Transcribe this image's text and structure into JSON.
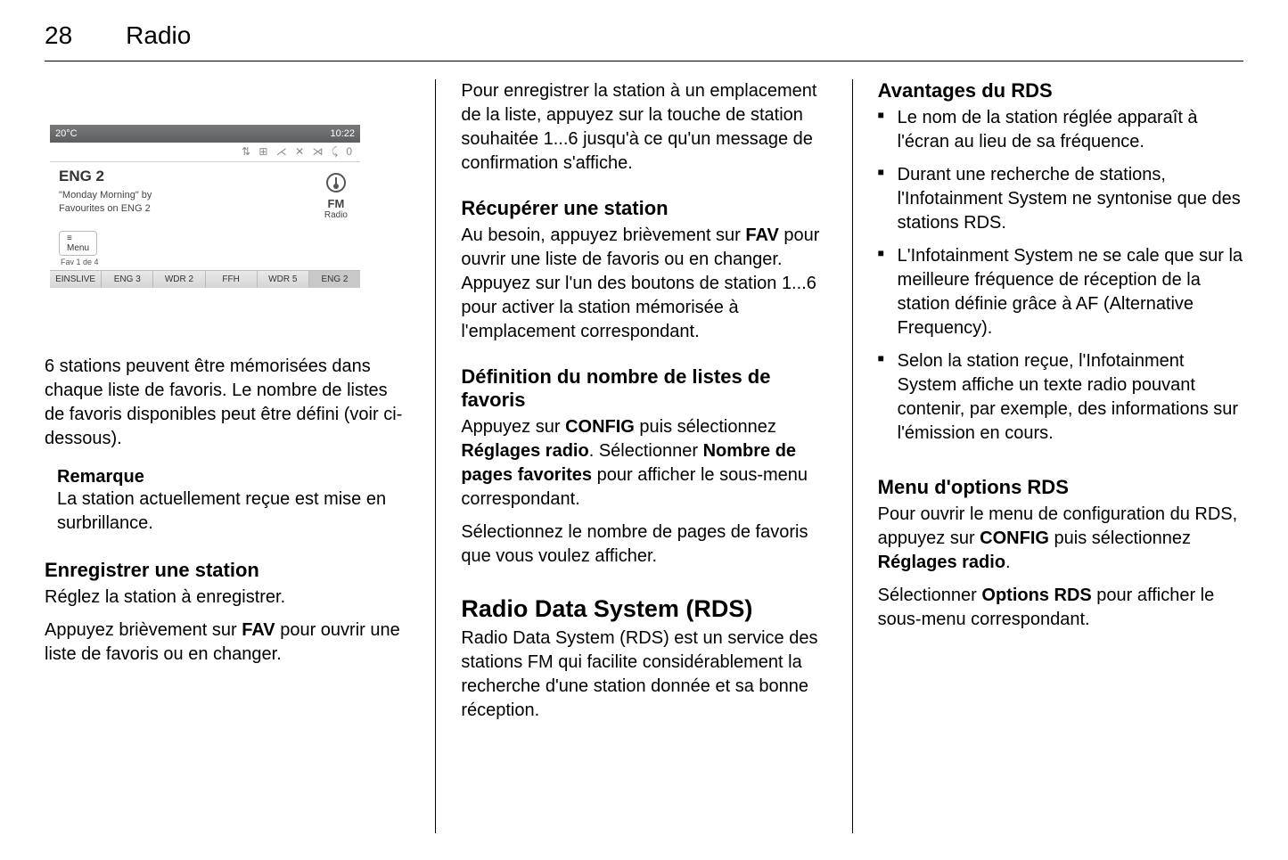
{
  "header": {
    "page_number": "28",
    "chapter": "Radio"
  },
  "screenshot": {
    "temp": "20°C",
    "time": "10:22",
    "status_icons": "⇅ ⊞ ⋌ ✕ ⋊ ⤹ 0",
    "current_station": "ENG 2",
    "now_playing_line1": "\"Monday Morning\" by",
    "now_playing_line2": "Favourites on ENG 2",
    "band_label_big": "FM",
    "band_label_small": "Radio",
    "menu_icon": "≡",
    "menu_label": "Menu",
    "fav_page_label": "Fav 1 de 4",
    "presets": [
      "EINSLIVE",
      "ENG 3",
      "WDR 2",
      "FFH",
      "WDR 5",
      "ENG 2"
    ]
  },
  "col1": {
    "p1": "6 stations peuvent être mémorisées dans chaque liste de favoris. Le nombre de listes de favoris disponibles peut être défini (voir ci-dessous).",
    "remark_title": "Remarque",
    "remark_body": "La station actuellement reçue est mise en surbrillance.",
    "h_save": "Enregistrer une station",
    "p_save1": "Réglez la station à enregistrer.",
    "p_save2_pre": "Appuyez brièvement sur ",
    "p_save2_bold": "FAV",
    "p_save2_post": " pour ouvrir une liste de favoris ou en changer."
  },
  "col2": {
    "p_top": "Pour enregistrer la station à un emplacement de la liste, appuyez sur la touche de station souhaitée 1...6 jusqu'à ce qu'un message de confirmation s'affiche.",
    "h_recup": "Récupérer une station",
    "p_recup_pre": "Au besoin, appuyez brièvement sur ",
    "p_recup_bold": "FAV",
    "p_recup_post": " pour ouvrir une liste de favoris ou en changer. Appuyez sur l'un des boutons de station 1...6 pour activer la station mémorisée à l'emplacement correspondant.",
    "h_def": "Définition du nombre de listes de favoris",
    "p_def_a": "Appuyez sur ",
    "p_def_b1": "CONFIG",
    "p_def_c": " puis sélectionnez ",
    "p_def_b2": "Réglages radio",
    "p_def_d": ". Sélectionner ",
    "p_def_b3": "Nombre de pages favorites",
    "p_def_e": " pour afficher le sous-menu correspondant.",
    "p_def2": "Sélectionnez le nombre de pages de favoris que vous voulez afficher.",
    "h_rds": "Radio Data System (RDS)",
    "p_rds": "Radio Data System (RDS) est un service des stations FM qui facilite considérablement la recherche d'une station donnée et sa bonne réception."
  },
  "col3": {
    "h_adv": "Avantages du RDS",
    "li1": "Le nom de la station réglée apparaît à l'écran au lieu de sa fréquence.",
    "li2": "Durant une recherche de stations, l'Infotainment System ne syntonise que des stations RDS.",
    "li3": "L'Infotainment System ne se cale que sur la meilleure fréquence de réception de la station définie grâce à AF (Alternative Frequency).",
    "li4": "Selon la station reçue, l'Infotainment System affiche un texte radio pouvant contenir, par exemple, des informations sur l'émission en cours.",
    "h_menu": "Menu d'options RDS",
    "p_m1_a": "Pour ouvrir le menu de configuration du RDS, appuyez sur ",
    "p_m1_b1": "CONFIG",
    "p_m1_c": " puis sélectionnez ",
    "p_m1_b2": "Réglages radio",
    "p_m1_d": ".",
    "p_m2_a": "Sélectionner ",
    "p_m2_b": "Options RDS",
    "p_m2_c": " pour afficher le sous-menu correspondant."
  }
}
